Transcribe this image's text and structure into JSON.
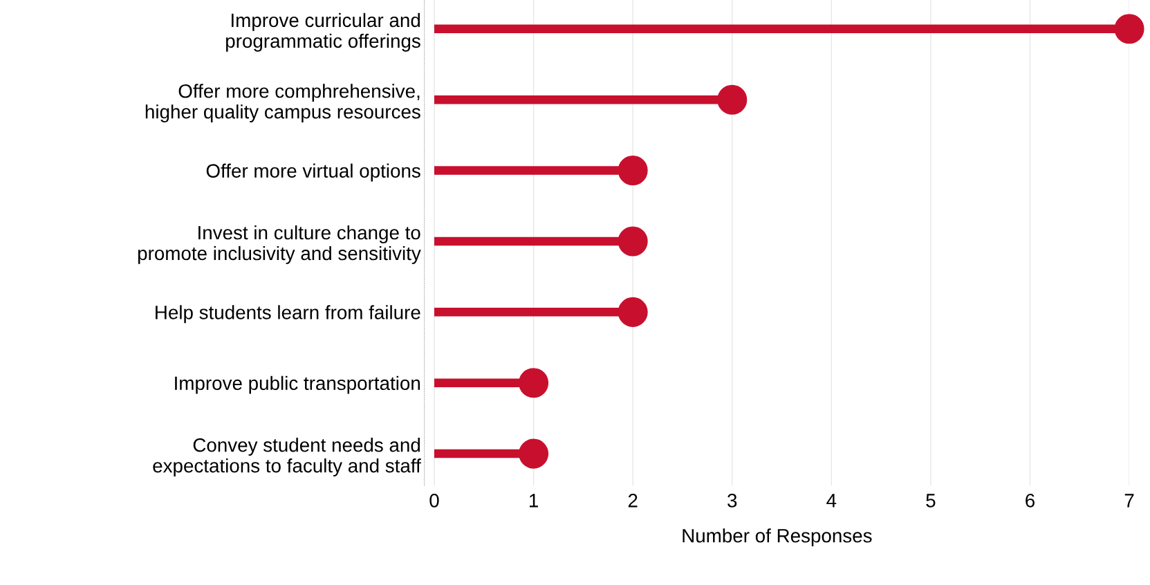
{
  "chart_data": {
    "type": "lollipop",
    "orientation": "horizontal",
    "categories": [
      "Improve curricular and\nprogrammatic offerings",
      "Offer more comphrehensive,\nhigher quality campus resources",
      "Offer more virtual options",
      "Invest in culture change to\npromote inclusivity and sensitivity",
      "Help students learn from failure",
      "Improve public transportation",
      "Convey student needs and\nexpectations to faculty and staff"
    ],
    "values": [
      7,
      3,
      2,
      2,
      2,
      1,
      1
    ],
    "color": "#c8102e",
    "xlabel": "Number of Responses",
    "xlim": [
      -0.1,
      7
    ],
    "xticks": [
      0,
      1,
      2,
      3,
      4,
      5,
      6,
      7
    ],
    "grid": "x",
    "marker": "circle"
  }
}
